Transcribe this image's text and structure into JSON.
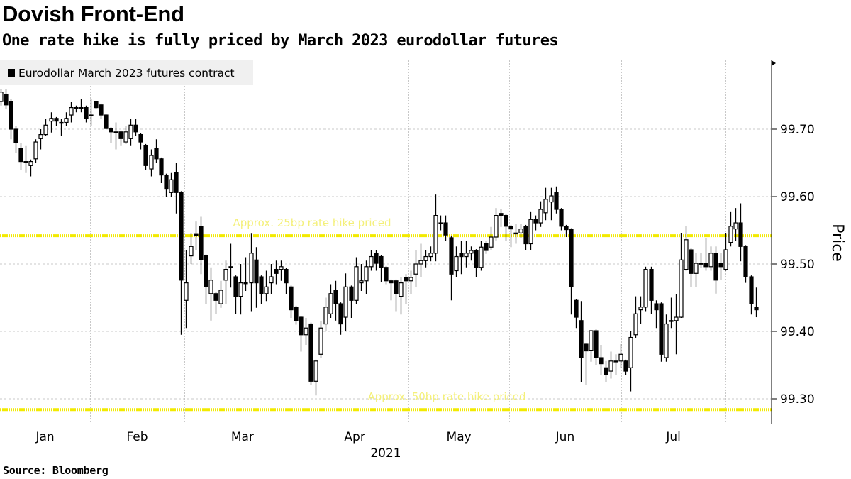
{
  "chart_data": {
    "type": "candlestick",
    "title": "Dovish Front-End",
    "subtitle": "One rate hike is fully priced by March 2023 eurodollar futures",
    "legend": [
      "Eurodollar March 2023 futures contract"
    ],
    "legend_position": "top-left",
    "xlabel": "2021",
    "ylabel": "Price",
    "ylim": [
      99.263,
      99.8
    ],
    "yticks": [
      99.3,
      99.4,
      99.5,
      99.6,
      99.7
    ],
    "ytick_labels": [
      "99.30",
      "99.40",
      "99.50",
      "99.60",
      "99.70"
    ],
    "grid": true,
    "months": [
      "Jan",
      "Feb",
      "Mar",
      "Apr",
      "May",
      "Jun",
      "Jul"
    ],
    "month_boundaries_index": [
      -0.14,
      17.9,
      36.7,
      60,
      81.6,
      101.7,
      124.1,
      145
    ],
    "reference_lines": [
      {
        "value": 99.542,
        "label": "Approx. 25bp rate hike priced",
        "color": "#f2ea00"
      },
      {
        "value": 99.284,
        "label": "Approx. 50bp rate hike priced",
        "color": "#f2ea00"
      }
    ],
    "ohlc_fields": [
      "open",
      "high",
      "low",
      "close"
    ],
    "candles": [
      [
        99.741,
        99.76,
        99.735,
        99.755
      ],
      [
        99.752,
        99.76,
        99.73,
        99.736
      ],
      [
        99.741,
        99.745,
        99.685,
        99.7
      ],
      [
        99.7,
        99.705,
        99.665,
        99.68
      ],
      [
        99.672,
        99.68,
        99.64,
        99.652
      ],
      [
        99.652,
        99.675,
        99.635,
        99.652
      ],
      [
        99.646,
        99.655,
        99.63,
        99.652
      ],
      [
        99.656,
        99.685,
        99.65,
        99.681
      ],
      [
        99.686,
        99.7,
        99.67,
        99.692
      ],
      [
        99.692,
        99.715,
        99.69,
        99.706
      ],
      [
        99.712,
        99.725,
        99.695,
        99.716
      ],
      [
        99.716,
        99.718,
        99.705,
        99.712
      ],
      [
        99.71,
        99.715,
        99.69,
        99.71
      ],
      [
        99.71,
        99.725,
        99.705,
        99.716
      ],
      [
        99.721,
        99.74,
        99.71,
        99.732
      ],
      [
        99.732,
        99.735,
        99.725,
        99.732
      ],
      [
        99.732,
        99.745,
        99.725,
        99.732
      ],
      [
        99.732,
        99.735,
        99.71,
        99.716
      ],
      [
        99.721,
        99.745,
        99.705,
        99.721
      ],
      [
        99.741,
        99.741,
        99.73,
        99.732
      ],
      [
        99.736,
        99.738,
        99.715,
        99.721
      ],
      [
        99.721,
        99.723,
        99.7,
        99.701
      ],
      [
        99.701,
        99.703,
        99.68,
        99.696
      ],
      [
        99.696,
        99.71,
        99.67,
        99.696
      ],
      [
        99.696,
        99.698,
        99.675,
        99.686
      ],
      [
        99.681,
        99.705,
        99.678,
        99.696
      ],
      [
        99.686,
        99.715,
        99.675,
        99.706
      ],
      [
        99.706,
        99.715,
        99.69,
        99.696
      ],
      [
        99.692,
        99.694,
        99.67,
        99.681
      ],
      [
        99.676,
        99.678,
        99.64,
        99.646
      ],
      [
        99.641,
        99.67,
        99.63,
        99.661
      ],
      [
        99.672,
        99.685,
        99.65,
        99.656
      ],
      [
        99.656,
        99.658,
        99.62,
        99.632
      ],
      [
        99.632,
        99.634,
        99.6,
        99.611
      ],
      [
        99.606,
        99.635,
        99.6,
        99.625
      ],
      [
        99.636,
        99.65,
        99.575,
        99.606
      ],
      [
        99.606,
        99.608,
        99.395,
        99.476
      ],
      [
        99.446,
        99.52,
        99.405,
        99.472
      ],
      [
        99.512,
        99.545,
        99.5,
        99.526
      ],
      [
        99.544,
        99.563,
        99.52,
        99.544
      ],
      [
        99.556,
        99.57,
        99.485,
        99.506
      ],
      [
        99.512,
        99.514,
        99.44,
        99.466
      ],
      [
        99.456,
        99.495,
        99.416,
        99.476
      ],
      [
        99.456,
        99.458,
        99.426,
        99.446
      ],
      [
        99.441,
        99.475,
        99.435,
        99.461
      ],
      [
        99.476,
        99.505,
        99.44,
        99.492
      ],
      [
        99.496,
        99.53,
        99.465,
        99.496
      ],
      [
        99.481,
        99.483,
        99.426,
        99.452
      ],
      [
        99.452,
        99.5,
        99.425,
        99.472
      ],
      [
        99.472,
        99.51,
        99.46,
        99.472
      ],
      [
        99.472,
        99.545,
        99.43,
        99.516
      ],
      [
        99.506,
        99.525,
        99.435,
        99.472
      ],
      [
        99.481,
        99.483,
        99.44,
        99.456
      ],
      [
        99.456,
        99.49,
        99.445,
        99.466
      ],
      [
        99.472,
        99.5,
        99.455,
        99.481
      ],
      [
        99.492,
        99.505,
        99.47,
        99.486
      ],
      [
        99.492,
        99.505,
        99.475,
        99.496
      ],
      [
        99.492,
        99.494,
        99.455,
        99.472
      ],
      [
        99.466,
        99.468,
        99.42,
        99.432
      ],
      [
        99.436,
        99.438,
        99.41,
        99.416
      ],
      [
        99.421,
        99.423,
        99.37,
        99.395
      ],
      [
        99.395,
        99.42,
        99.38,
        99.405
      ],
      [
        99.411,
        99.413,
        99.32,
        99.326
      ],
      [
        99.326,
        99.358,
        99.305,
        99.356
      ],
      [
        99.366,
        99.415,
        99.36,
        99.405
      ],
      [
        99.411,
        99.45,
        99.4,
        99.436
      ],
      [
        99.426,
        99.47,
        99.42,
        99.456
      ],
      [
        99.461,
        99.475,
        99.416,
        99.441
      ],
      [
        99.441,
        99.443,
        99.395,
        99.411
      ],
      [
        99.421,
        99.486,
        99.4,
        99.466
      ],
      [
        99.466,
        99.468,
        99.42,
        99.446
      ],
      [
        99.446,
        99.51,
        99.44,
        99.496
      ],
      [
        99.472,
        99.5,
        99.46,
        99.475
      ],
      [
        99.475,
        99.505,
        99.455,
        99.496
      ],
      [
        99.496,
        99.52,
        99.49,
        99.511
      ],
      [
        99.516,
        99.52,
        99.49,
        99.501
      ],
      [
        99.511,
        99.513,
        99.473,
        99.495
      ],
      [
        99.495,
        99.497,
        99.47,
        99.475
      ],
      [
        99.475,
        99.477,
        99.446,
        99.472
      ],
      [
        99.475,
        99.477,
        99.43,
        99.456
      ],
      [
        99.452,
        99.48,
        99.425,
        99.472
      ],
      [
        99.48,
        99.485,
        99.44,
        99.475
      ],
      [
        99.475,
        99.49,
        99.455,
        99.48
      ],
      [
        99.485,
        99.52,
        99.466,
        99.5
      ],
      [
        99.5,
        99.53,
        99.48,
        99.505
      ],
      [
        99.505,
        99.52,
        99.495,
        99.511
      ],
      [
        99.511,
        99.526,
        99.504,
        99.516
      ],
      [
        99.516,
        99.603,
        99.504,
        99.572
      ],
      [
        99.561,
        99.572,
        99.55,
        99.561
      ],
      [
        99.561,
        99.572,
        99.534,
        99.543
      ],
      [
        99.539,
        99.541,
        99.446,
        99.485
      ],
      [
        99.49,
        99.526,
        99.48,
        99.511
      ],
      [
        99.516,
        99.534,
        99.485,
        99.511
      ],
      [
        99.511,
        99.534,
        99.495,
        99.516
      ],
      [
        99.516,
        99.526,
        99.505,
        99.52
      ],
      [
        99.52,
        99.522,
        99.48,
        99.495
      ],
      [
        99.495,
        99.534,
        99.49,
        99.525
      ],
      [
        99.53,
        99.534,
        99.515,
        99.52
      ],
      [
        99.525,
        99.555,
        99.52,
        99.54
      ],
      [
        99.54,
        99.583,
        99.535,
        99.572
      ],
      [
        99.575,
        99.582,
        99.555,
        99.572
      ],
      [
        99.572,
        99.574,
        99.534,
        99.556
      ],
      [
        99.556,
        99.558,
        99.525,
        99.552
      ],
      [
        99.546,
        99.56,
        99.53,
        99.546
      ],
      [
        99.546,
        99.56,
        99.538,
        99.552
      ],
      [
        99.556,
        99.558,
        99.52,
        99.53
      ],
      [
        99.53,
        99.577,
        99.52,
        99.566
      ],
      [
        99.566,
        99.572,
        99.55,
        99.561
      ],
      [
        99.561,
        99.593,
        99.555,
        99.581
      ],
      [
        99.576,
        99.613,
        99.565,
        99.596
      ],
      [
        99.592,
        99.613,
        99.565,
        99.601
      ],
      [
        99.606,
        99.615,
        99.575,
        99.581
      ],
      [
        99.581,
        99.583,
        99.55,
        99.556
      ],
      [
        99.556,
        99.558,
        99.54,
        99.551
      ],
      [
        99.551,
        99.553,
        99.425,
        99.466
      ],
      [
        99.446,
        99.448,
        99.405,
        99.421
      ],
      [
        99.416,
        99.445,
        99.325,
        99.361
      ],
      [
        99.381,
        99.383,
        99.32,
        99.371
      ],
      [
        99.372,
        99.402,
        99.355,
        99.401
      ],
      [
        99.401,
        99.403,
        99.35,
        99.361
      ],
      [
        99.361,
        99.38,
        99.335,
        99.352
      ],
      [
        99.346,
        99.356,
        99.325,
        99.336
      ],
      [
        99.341,
        99.37,
        99.33,
        99.356
      ],
      [
        99.356,
        99.366,
        99.335,
        99.356
      ],
      [
        99.356,
        99.381,
        99.346,
        99.366
      ],
      [
        99.356,
        99.358,
        99.335,
        99.341
      ],
      [
        99.346,
        99.401,
        99.311,
        99.391
      ],
      [
        99.395,
        99.452,
        99.39,
        99.426
      ],
      [
        99.432,
        99.452,
        99.411,
        99.436
      ],
      [
        99.436,
        99.496,
        99.43,
        99.492
      ],
      [
        99.492,
        99.496,
        99.426,
        99.446
      ],
      [
        99.441,
        99.446,
        99.405,
        99.432
      ],
      [
        99.441,
        99.443,
        99.355,
        99.366
      ],
      [
        99.361,
        99.425,
        99.355,
        99.411
      ],
      [
        99.416,
        99.45,
        99.405,
        99.416
      ],
      [
        99.416,
        99.455,
        99.366,
        99.421
      ],
      [
        99.421,
        99.546,
        99.42,
        99.506
      ],
      [
        99.492,
        99.556,
        99.49,
        99.536
      ],
      [
        99.521,
        99.523,
        99.466,
        99.486
      ],
      [
        99.486,
        99.516,
        99.466,
        99.501
      ],
      [
        99.501,
        99.516,
        99.494,
        99.501
      ],
      [
        99.501,
        99.539,
        99.49,
        99.496
      ],
      [
        99.496,
        99.526,
        99.49,
        99.516
      ],
      [
        99.516,
        99.526,
        99.456,
        99.476
      ],
      [
        99.501,
        99.516,
        99.476,
        99.496
      ],
      [
        99.492,
        99.546,
        99.49,
        99.521
      ],
      [
        99.532,
        99.577,
        99.526,
        99.556
      ],
      [
        99.552,
        99.583,
        99.534,
        99.561
      ],
      [
        99.561,
        99.59,
        99.504,
        99.526
      ],
      [
        99.526,
        99.528,
        99.472,
        99.481
      ],
      [
        99.481,
        99.483,
        99.425,
        99.441
      ],
      [
        99.436,
        99.465,
        99.421,
        99.432
      ]
    ],
    "colors": {
      "up_fill": "#ffffff",
      "down_fill": "#000000",
      "outline": "#000000",
      "grid": "#c8c8c8",
      "reference": "#f2ea00",
      "reference_text": "#f4f07a"
    }
  },
  "source": "Source: Bloomberg"
}
